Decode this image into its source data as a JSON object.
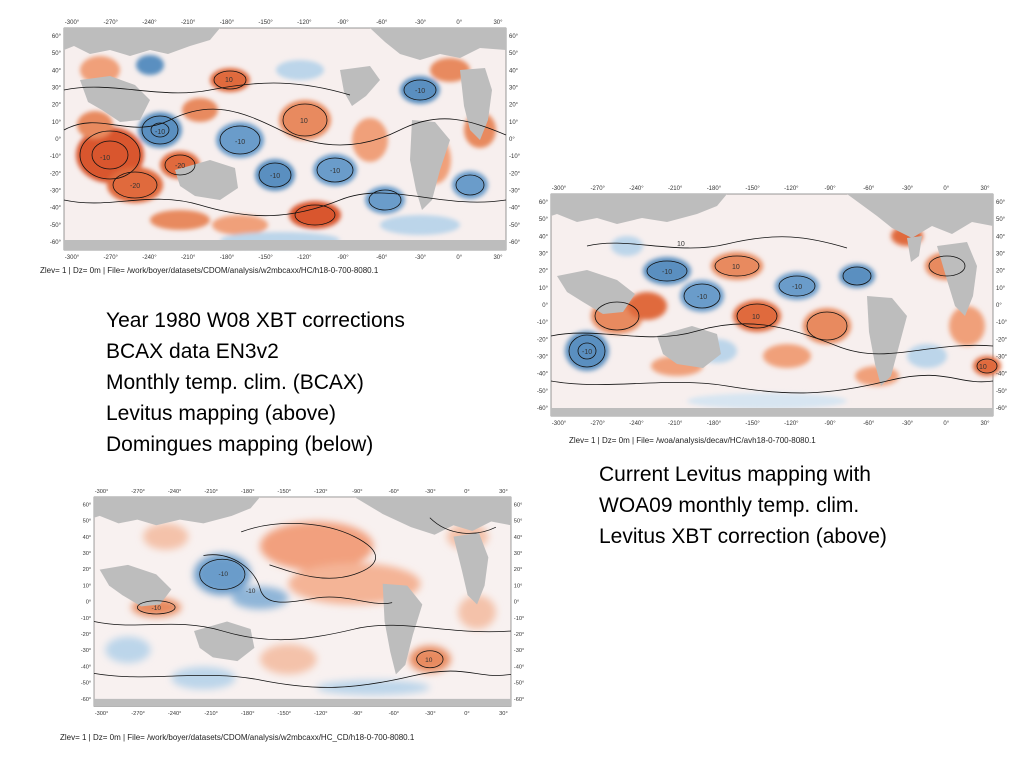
{
  "maps": [
    {
      "id": "map1",
      "lon_ticks": [
        "-300°",
        "-270°",
        "-240°",
        "-210°",
        "-180°",
        "-150°",
        "-120°",
        "-90°",
        "-60°",
        "-30°",
        "0°",
        "30°"
      ],
      "lat_ticks": [
        "60°",
        "50°",
        "40°",
        "30°",
        "20°",
        "10°",
        "0°",
        "-10°",
        "-20°",
        "-30°",
        "-40°",
        "-50°",
        "-60°"
      ],
      "contour_labels": [
        "-10",
        "-10",
        "-20",
        "-10",
        "10",
        "-10",
        "10",
        "-10",
        "-20",
        "-10"
      ],
      "caption": "Zlev= 1 | Dz=   0m | File= /work/boyer/datasets/CDOM/analysis/w2mbcaxx/HC/h18-0-700-8080.1"
    },
    {
      "id": "map2",
      "lon_ticks": [
        "-300°",
        "-270°",
        "-240°",
        "-210°",
        "-180°",
        "-150°",
        "-120°",
        "-90°",
        "-60°",
        "-30°",
        "0°",
        "30°"
      ],
      "lat_ticks": [
        "60°",
        "50°",
        "40°",
        "30°",
        "20°",
        "10°",
        "0°",
        "-10°",
        "-20°",
        "-30°",
        "-40°",
        "-50°",
        "-60°"
      ],
      "contour_labels": [
        "10",
        "-10",
        "10",
        "-10",
        "10",
        "-10",
        "-10",
        "10"
      ],
      "caption": "Zlev= 1 | Dz=   0m | File= /woa/analysis/decav/HC/avh18-0-700-8080.1"
    },
    {
      "id": "map3",
      "lon_ticks": [
        "-300°",
        "-270°",
        "-240°",
        "-210°",
        "-180°",
        "-150°",
        "-120°",
        "-90°",
        "-60°",
        "-30°",
        "0°",
        "30°"
      ],
      "lat_ticks": [
        "60°",
        "50°",
        "40°",
        "30°",
        "20°",
        "10°",
        "0°",
        "-10°",
        "-20°",
        "-30°",
        "-40°",
        "-50°",
        "-60°"
      ],
      "contour_labels": [
        "-10",
        "-10",
        "-10",
        "10"
      ],
      "caption": "Zlev= 1 | Dz=   0m | File= /work/boyer/datasets/CDOM/analysis/w2mbcaxx/HC_CD/h18-0-700-8080.1"
    }
  ],
  "text_left": [
    "Year 1980 W08 XBT corrections",
    "BCAX data EN3v2",
    "Monthly temp. clim. (BCAX)",
    "Levitus mapping (above)",
    "Domingues mapping (below)"
  ],
  "text_right": [
    "Current Levitus mapping with",
    "WOA09 monthly temp. clim.",
    "Levitus XBT correction (above)"
  ],
  "colors": {
    "land": "#bdbdbd",
    "warm": "#e0643a",
    "warm_light": "#f4b89c",
    "cool": "#5b93c4",
    "cool_light": "#bcd5ea",
    "ocean": "#f6ecea",
    "contour": "#111111"
  }
}
